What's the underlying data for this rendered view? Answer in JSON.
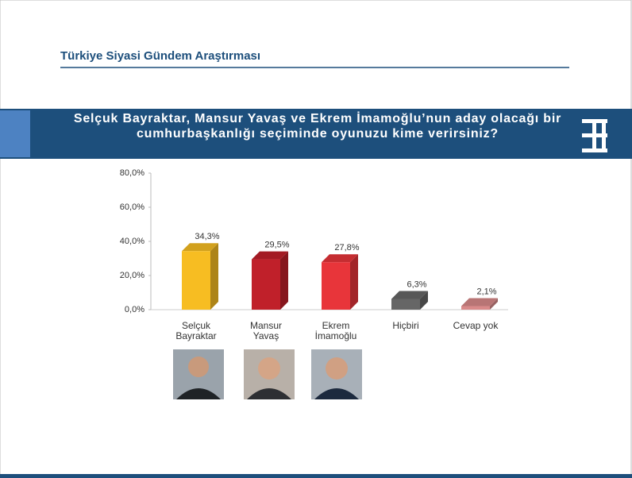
{
  "header": {
    "title": "Türkiye Siyasi Gündem Araştırması",
    "question": "Selçuk Bayraktar, Mansur Yavaş ve Ekrem İmamoğlu’nun aday olacağı bir cumhurbaşkanlığı seçiminde oyunuzu kime verirsiniz?"
  },
  "chart_data": {
    "type": "bar3d",
    "categories": [
      "Selçuk Bayraktar",
      "Mansur Yavaş",
      "Ekrem İmamoğlu",
      "Hiçbiri",
      "Cevap yok"
    ],
    "values": [
      34.3,
      29.5,
      27.8,
      6.3,
      2.1
    ],
    "value_labels": [
      "34,3%",
      "29,5%",
      "27,8%",
      "6,3%",
      "2,1%"
    ],
    "colors": [
      "#f7bd22",
      "#c0202a",
      "#e8353a",
      "#666666",
      "#d98a8a"
    ],
    "ylim": [
      0,
      80
    ],
    "yticks": [
      {
        "value": 0,
        "label": "0,0%"
      },
      {
        "value": 20,
        "label": "20,0%"
      },
      {
        "value": 40,
        "label": "40,0%"
      },
      {
        "value": 60,
        "label": "60,0%"
      },
      {
        "value": 80,
        "label": "80,0%"
      }
    ],
    "grid": false
  }
}
